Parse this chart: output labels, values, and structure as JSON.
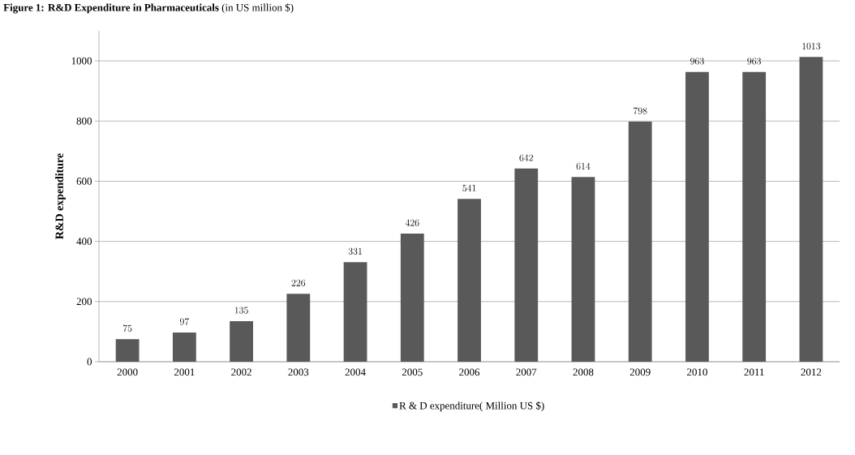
{
  "chart_data": {
    "type": "bar",
    "title": "**Figure 1: R&D Expenditure in Pharmaceuticals** (in US million $)",
    "ylabel": "R&D expenditure",
    "categories": [
      "2000",
      "2001",
      "2002",
      "2003",
      "2004",
      "2005",
      "2006",
      "2007",
      "2008",
      "2009",
      "2010",
      "2011",
      "2012"
    ],
    "series": [
      {
        "name": "R & D expenditure( Million US $)",
        "color": "#595959",
        "values": [
          75,
          97,
          135,
          226,
          331,
          426,
          541,
          642,
          614,
          798,
          963,
          963,
          1013
        ]
      }
    ],
    "ylim": [
      0,
      1100
    ],
    "yticks": [
      0,
      200,
      400,
      600,
      800,
      1000
    ],
    "grid": "y",
    "legend": "bottom",
    "data_labels": true
  }
}
